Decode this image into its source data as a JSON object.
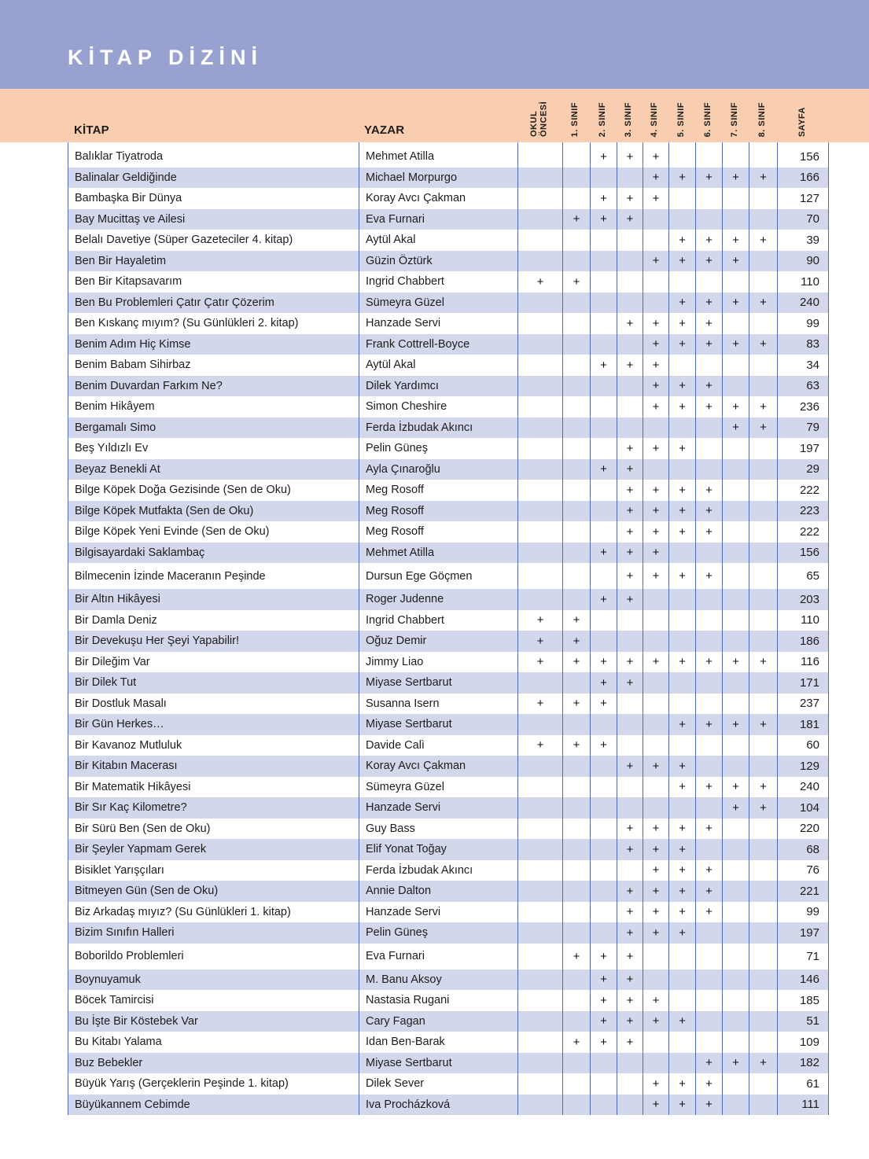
{
  "page": {
    "title": "KİTAP DİZİNİ"
  },
  "colors": {
    "title_band": "#98a1d0",
    "header_band": "#f9cdb0",
    "row_alt": "#d2d7ec",
    "grid_line": "#5069b2",
    "title_text": "#ffffff",
    "body_text": "#1d1d1b"
  },
  "table": {
    "col_book": "KİTAP",
    "col_author": "YAZAR",
    "grade_columns": [
      "OKUL ÖNCESİ",
      "1. SINIF",
      "2. SINIF",
      "3. SINIF",
      "4. SINIF",
      "5. SINIF",
      "6. SINIF",
      "7. SINIF",
      "8. SINIF"
    ],
    "col_page": "SAYFA",
    "rows": [
      {
        "book": "Balıklar Tiyatroda",
        "author": "Mehmet Atilla",
        "grades": [
          0,
          0,
          1,
          1,
          1,
          0,
          0,
          0,
          0
        ],
        "page": "156"
      },
      {
        "book": "Balinalar Geldiğinde",
        "author": "Michael Morpurgo",
        "grades": [
          0,
          0,
          0,
          0,
          1,
          1,
          1,
          1,
          1
        ],
        "page": "166"
      },
      {
        "book": "Bambaşka Bir Dünya",
        "author": "Koray Avcı Çakman",
        "grades": [
          0,
          0,
          1,
          1,
          1,
          0,
          0,
          0,
          0
        ],
        "page": "127"
      },
      {
        "book": "Bay Mucittaş ve Ailesi",
        "author": "Eva Furnari",
        "grades": [
          0,
          1,
          1,
          1,
          0,
          0,
          0,
          0,
          0
        ],
        "page": "70"
      },
      {
        "book": "Belalı Davetiye (Süper Gazeteciler 4. kitap)",
        "author": "Aytül Akal",
        "grades": [
          0,
          0,
          0,
          0,
          0,
          1,
          1,
          1,
          1
        ],
        "page": "39"
      },
      {
        "book": "Ben Bir Hayaletim",
        "author": "Güzin Öztürk",
        "grades": [
          0,
          0,
          0,
          0,
          1,
          1,
          1,
          1,
          0
        ],
        "page": "90"
      },
      {
        "book": "Ben Bir Kitapsavarım",
        "author": "Ingrid Chabbert",
        "grades": [
          1,
          1,
          0,
          0,
          0,
          0,
          0,
          0,
          0
        ],
        "page": "110"
      },
      {
        "book": "Ben Bu Problemleri Çatır Çatır Çözerim",
        "author": "Sümeyra Güzel",
        "grades": [
          0,
          0,
          0,
          0,
          0,
          1,
          1,
          1,
          1
        ],
        "page": "240"
      },
      {
        "book": "Ben Kıskanç mıyım? (Su Günlükleri 2. kitap)",
        "author": "Hanzade Servi",
        "grades": [
          0,
          0,
          0,
          1,
          1,
          1,
          1,
          0,
          0
        ],
        "page": "99"
      },
      {
        "book": "Benim Adım Hiç Kimse",
        "author": "Frank Cottrell-Boyce",
        "grades": [
          0,
          0,
          0,
          0,
          1,
          1,
          1,
          1,
          1
        ],
        "page": "83"
      },
      {
        "book": "Benim Babam Sihirbaz",
        "author": "Aytül Akal",
        "grades": [
          0,
          0,
          1,
          1,
          1,
          0,
          0,
          0,
          0
        ],
        "page": "34"
      },
      {
        "book": "Benim Duvardan Farkım Ne?",
        "author": "Dilek Yardımcı",
        "grades": [
          0,
          0,
          0,
          0,
          1,
          1,
          1,
          0,
          0
        ],
        "page": "63"
      },
      {
        "book": "Benim Hikâyem",
        "author": "Simon Cheshire",
        "grades": [
          0,
          0,
          0,
          0,
          1,
          1,
          1,
          1,
          1
        ],
        "page": "236"
      },
      {
        "book": "Bergamalı Simo",
        "author": "Ferda İzbudak Akıncı",
        "grades": [
          0,
          0,
          0,
          0,
          0,
          0,
          0,
          1,
          1
        ],
        "page": "79"
      },
      {
        "book": "Beş Yıldızlı Ev",
        "author": "Pelin Güneş",
        "grades": [
          0,
          0,
          0,
          1,
          1,
          1,
          0,
          0,
          0
        ],
        "page": "197"
      },
      {
        "book": "Beyaz Benekli At",
        "author": "Ayla Çınaroğlu",
        "grades": [
          0,
          0,
          1,
          1,
          0,
          0,
          0,
          0,
          0
        ],
        "page": "29"
      },
      {
        "book": "Bilge Köpek Doğa Gezisinde (Sen de Oku)",
        "author": "Meg Rosoff",
        "grades": [
          0,
          0,
          0,
          1,
          1,
          1,
          1,
          0,
          0
        ],
        "page": "222"
      },
      {
        "book": "Bilge Köpek Mutfakta (Sen de Oku)",
        "author": "Meg Rosoff",
        "grades": [
          0,
          0,
          0,
          1,
          1,
          1,
          1,
          0,
          0
        ],
        "page": "223"
      },
      {
        "book": "Bilge Köpek Yeni Evinde (Sen de Oku)",
        "author": "Meg Rosoff",
        "grades": [
          0,
          0,
          0,
          1,
          1,
          1,
          1,
          0,
          0
        ],
        "page": "222"
      },
      {
        "book": "Bilgisayardaki Saklambaç",
        "author": "Mehmet Atilla",
        "grades": [
          0,
          0,
          1,
          1,
          1,
          0,
          0,
          0,
          0
        ],
        "page": "156"
      },
      {
        "book": "Bilmecenin İzinde Maceranın Peşinde",
        "author": "Dursun Ege Göçmen",
        "grades": [
          0,
          0,
          0,
          1,
          1,
          1,
          1,
          0,
          0
        ],
        "page": "65",
        "tall": true
      },
      {
        "book": "Bir Altın Hikâyesi",
        "author": "Roger Judenne",
        "grades": [
          0,
          0,
          1,
          1,
          0,
          0,
          0,
          0,
          0
        ],
        "page": "203"
      },
      {
        "book": "Bir Damla Deniz",
        "author": "Ingrid Chabbert",
        "grades": [
          1,
          1,
          0,
          0,
          0,
          0,
          0,
          0,
          0
        ],
        "page": "110"
      },
      {
        "book": "Bir Devekuşu Her Şeyi Yapabilir!",
        "author": "Oğuz Demir",
        "grades": [
          1,
          1,
          0,
          0,
          0,
          0,
          0,
          0,
          0
        ],
        "page": "186"
      },
      {
        "book": "Bir Dileğim Var",
        "author": "Jimmy Liao",
        "grades": [
          1,
          1,
          1,
          1,
          1,
          1,
          1,
          1,
          1
        ],
        "page": "116"
      },
      {
        "book": "Bir Dilek Tut",
        "author": "Miyase Sertbarut",
        "grades": [
          0,
          0,
          1,
          1,
          0,
          0,
          0,
          0,
          0
        ],
        "page": "171"
      },
      {
        "book": "Bir Dostluk Masalı",
        "author": "Susanna Isern",
        "grades": [
          1,
          1,
          1,
          0,
          0,
          0,
          0,
          0,
          0
        ],
        "page": "237"
      },
      {
        "book": "Bir Gün Herkes…",
        "author": "Miyase Sertbarut",
        "grades": [
          0,
          0,
          0,
          0,
          0,
          1,
          1,
          1,
          1
        ],
        "page": "181"
      },
      {
        "book": "Bir Kavanoz Mutluluk",
        "author": "Davide Calì",
        "grades": [
          1,
          1,
          1,
          0,
          0,
          0,
          0,
          0,
          0
        ],
        "page": "60"
      },
      {
        "book": "Bir Kitabın Macerası",
        "author": "Koray Avcı Çakman",
        "grades": [
          0,
          0,
          0,
          1,
          1,
          1,
          0,
          0,
          0
        ],
        "page": "129"
      },
      {
        "book": "Bir Matematik Hikâyesi",
        "author": "Sümeyra Güzel",
        "grades": [
          0,
          0,
          0,
          0,
          0,
          1,
          1,
          1,
          1
        ],
        "page": "240"
      },
      {
        "book": "Bir Sır Kaç Kilometre?",
        "author": "Hanzade Servi",
        "grades": [
          0,
          0,
          0,
          0,
          0,
          0,
          0,
          1,
          1
        ],
        "page": "104"
      },
      {
        "book": "Bir Sürü Ben (Sen de Oku)",
        "author": "Guy Bass",
        "grades": [
          0,
          0,
          0,
          1,
          1,
          1,
          1,
          0,
          0
        ],
        "page": "220"
      },
      {
        "book": "Bir Şeyler Yapmam Gerek",
        "author": "Elif Yonat Toğay",
        "grades": [
          0,
          0,
          0,
          1,
          1,
          1,
          0,
          0,
          0
        ],
        "page": "68"
      },
      {
        "book": "Bisiklet Yarışçıları",
        "author": "Ferda İzbudak Akıncı",
        "grades": [
          0,
          0,
          0,
          0,
          1,
          1,
          1,
          0,
          0
        ],
        "page": "76"
      },
      {
        "book": "Bitmeyen Gün (Sen de Oku)",
        "author": "Annie Dalton",
        "grades": [
          0,
          0,
          0,
          1,
          1,
          1,
          1,
          0,
          0
        ],
        "page": "221"
      },
      {
        "book": "Biz Arkadaş mıyız? (Su Günlükleri 1. kitap)",
        "author": "Hanzade Servi",
        "grades": [
          0,
          0,
          0,
          1,
          1,
          1,
          1,
          0,
          0
        ],
        "page": "99"
      },
      {
        "book": "Bizim Sınıfın Halleri",
        "author": "Pelin Güneş",
        "grades": [
          0,
          0,
          0,
          1,
          1,
          1,
          0,
          0,
          0
        ],
        "page": "197"
      },
      {
        "book": "Boborildo Problemleri",
        "author": "Eva Furnari",
        "grades": [
          0,
          1,
          1,
          1,
          0,
          0,
          0,
          0,
          0
        ],
        "page": "71",
        "tall": true
      },
      {
        "book": "Boynuyamuk",
        "author": "M. Banu Aksoy",
        "grades": [
          0,
          0,
          1,
          1,
          0,
          0,
          0,
          0,
          0
        ],
        "page": "146"
      },
      {
        "book": "Böcek Tamircisi",
        "author": "Nastasia Rugani",
        "grades": [
          0,
          0,
          1,
          1,
          1,
          0,
          0,
          0,
          0
        ],
        "page": "185"
      },
      {
        "book": "Bu İşte Bir Köstebek Var",
        "author": "Cary Fagan",
        "grades": [
          0,
          0,
          1,
          1,
          1,
          1,
          0,
          0,
          0
        ],
        "page": "51"
      },
      {
        "book": "Bu Kitabı Yalama",
        "author": "Idan Ben-Barak",
        "grades": [
          0,
          1,
          1,
          1,
          0,
          0,
          0,
          0,
          0
        ],
        "page": "109"
      },
      {
        "book": "Buz Bebekler",
        "author": "Miyase Sertbarut",
        "grades": [
          0,
          0,
          0,
          0,
          0,
          0,
          1,
          1,
          1
        ],
        "page": "182"
      },
      {
        "book": "Büyük Yarış (Gerçeklerin Peşinde 1. kitap)",
        "author": "Dilek Sever",
        "grades": [
          0,
          0,
          0,
          0,
          1,
          1,
          1,
          0,
          0
        ],
        "page": "61"
      },
      {
        "book": "Büyükannem Cebimde",
        "author": "Iva Procházková",
        "grades": [
          0,
          0,
          0,
          0,
          1,
          1,
          1,
          0,
          0
        ],
        "page": "111"
      }
    ]
  }
}
